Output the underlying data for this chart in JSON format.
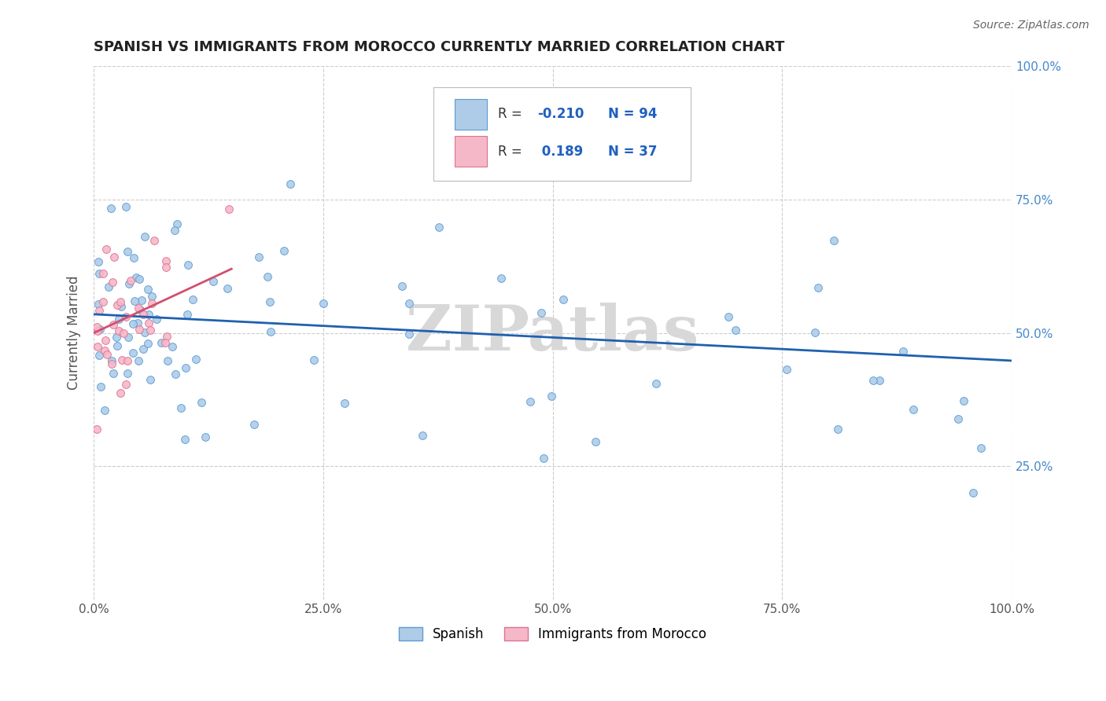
{
  "title": "SPANISH VS IMMIGRANTS FROM MOROCCO CURRENTLY MARRIED CORRELATION CHART",
  "source_text": "Source: ZipAtlas.com",
  "ylabel": "Currently Married",
  "xlim": [
    0.0,
    1.0
  ],
  "ylim": [
    0.0,
    1.0
  ],
  "xtick_labels": [
    "0.0%",
    "25.0%",
    "50.0%",
    "75.0%",
    "100.0%"
  ],
  "xtick_vals": [
    0.0,
    0.25,
    0.5,
    0.75,
    1.0
  ],
  "ytick_labels": [
    "25.0%",
    "50.0%",
    "75.0%",
    "100.0%"
  ],
  "ytick_vals": [
    0.25,
    0.5,
    0.75,
    1.0
  ],
  "spanish_color": "#aecce8",
  "morocco_color": "#f5b8c8",
  "spanish_edge": "#5b9bd5",
  "morocco_edge": "#e07090",
  "trend_spanish_color": "#2060b0",
  "trend_morocco_color": "#d05070",
  "watermark": "ZIPatlas",
  "watermark_color": "#d8d8d8",
  "legend_r_spanish": "-0.210",
  "legend_n_spanish": "94",
  "legend_r_morocco": "0.189",
  "legend_n_morocco": "37",
  "r_color": "#2060c0",
  "grid_color": "#cccccc",
  "title_color": "#222222",
  "source_color": "#666666",
  "ylabel_color": "#555555",
  "tick_color": "#555555",
  "right_tick_color": "#4488cc"
}
